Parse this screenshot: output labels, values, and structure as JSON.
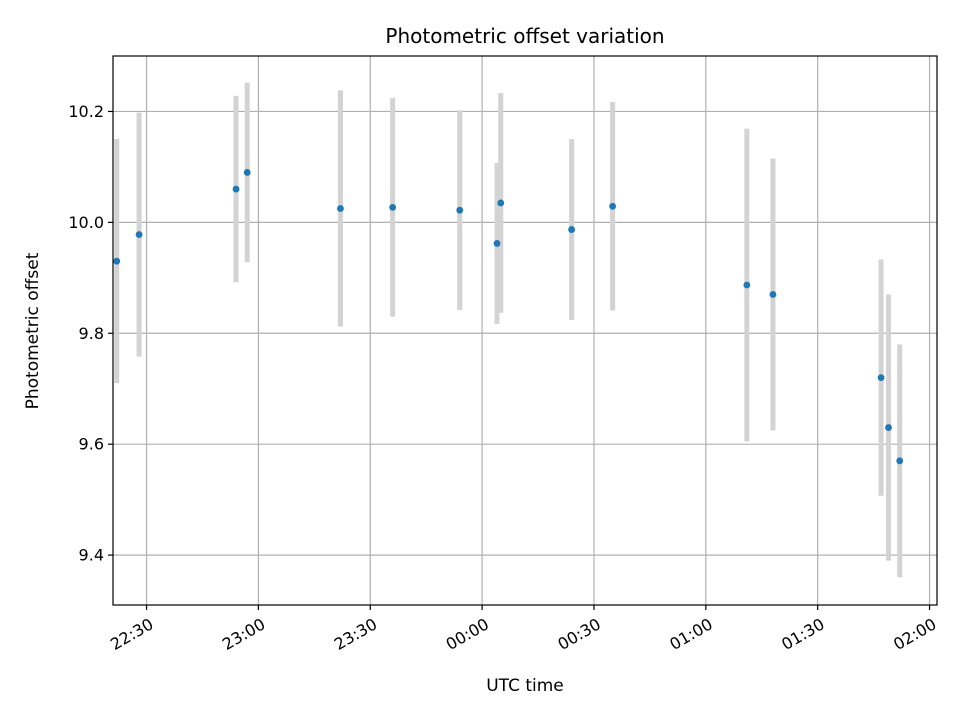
{
  "chart_data": {
    "type": "scatter",
    "title": "Photometric offset variation",
    "xlabel": "UTC time",
    "ylabel": "Photometric offset",
    "grid": true,
    "xlim": [
      "22:21",
      "02:02"
    ],
    "ylim": [
      9.31,
      10.3
    ],
    "x_ticks": [
      "22:30",
      "23:00",
      "23:30",
      "00:00",
      "00:30",
      "01:00",
      "01:30",
      "02:00"
    ],
    "y_ticks": [
      "9.4",
      "9.6",
      "9.8",
      "10.0",
      "10.2"
    ],
    "colors": {
      "point": "#1f77b4",
      "errorbar": "#d3d3d3",
      "grid": "#b0b0b0",
      "axis": "#000000"
    },
    "series": [
      {
        "points": [
          {
            "x": "22:22",
            "y": 9.93,
            "yerr": 0.22
          },
          {
            "x": "22:28",
            "y": 9.978,
            "yerr": 0.22
          },
          {
            "x": "22:54",
            "y": 10.06,
            "yerr": 0.168
          },
          {
            "x": "22:57",
            "y": 10.09,
            "yerr": 0.162
          },
          {
            "x": "23:22",
            "y": 10.025,
            "yerr": 0.213
          },
          {
            "x": "23:36",
            "y": 10.027,
            "yerr": 0.197
          },
          {
            "x": "23:54",
            "y": 10.022,
            "yerr": 0.18
          },
          {
            "x": "00:04",
            "y": 9.962,
            "yerr": 0.145
          },
          {
            "x": "00:05",
            "y": 10.035,
            "yerr": 0.198
          },
          {
            "x": "00:24",
            "y": 9.987,
            "yerr": 0.163
          },
          {
            "x": "00:35",
            "y": 10.029,
            "yerr": 0.188
          },
          {
            "x": "01:11",
            "y": 9.887,
            "yerr": 0.282
          },
          {
            "x": "01:18",
            "y": 9.87,
            "yerr": 0.245
          },
          {
            "x": "01:47",
            "y": 9.72,
            "yerr": 0.213
          },
          {
            "x": "01:49",
            "y": 9.63,
            "yerr": 0.24
          },
          {
            "x": "01:52",
            "y": 9.57,
            "yerr": 0.21
          }
        ]
      }
    ]
  }
}
